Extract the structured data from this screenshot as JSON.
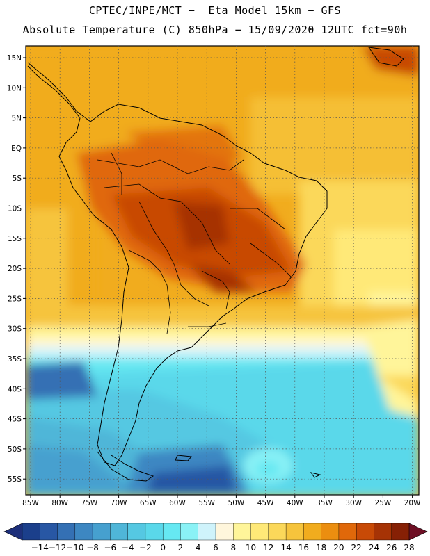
{
  "header": {
    "line1": "CPTEC/INPE/MCT −  Eta Model 15km − GFS",
    "line2": "Absolute Temperature (C) 850hPa − 15/09/2020 12UTC fct=90h"
  },
  "map": {
    "lat_labels": [
      "15N",
      "10N",
      "5N",
      "EQ",
      "5S",
      "10S",
      "15S",
      "20S",
      "25S",
      "30S",
      "35S",
      "40S",
      "45S",
      "50S",
      "55S"
    ],
    "lon_labels": [
      "85W",
      "80W",
      "75W",
      "70W",
      "65W",
      "60W",
      "55W",
      "50W",
      "45W",
      "40W",
      "35W",
      "30W",
      "25W",
      "20W"
    ],
    "region": "South America",
    "variable": "Absolute Temperature (C) 850hPa"
  },
  "legend": {
    "labels": [
      "-14",
      "-12",
      "-10",
      "-8",
      "-6",
      "-4",
      "-2",
      "0",
      "2",
      "4",
      "6",
      "8",
      "10",
      "12",
      "14",
      "16",
      "18",
      "20",
      "22",
      "24",
      "26",
      "28"
    ],
    "colors": [
      "#1b3f8b",
      "#2857a4",
      "#3470b4",
      "#3d87c2",
      "#46a0cf",
      "#4fb6d8",
      "#55c8e2",
      "#5ad8ea",
      "#66e8f2",
      "#8af2f6",
      "#cff3fb",
      "#fff6dc",
      "#fff59a",
      "#ffe978",
      "#fbd85a",
      "#f6c43c",
      "#f1ac1e",
      "#eb8e10",
      "#e0680a",
      "#c84a06",
      "#a63305",
      "#862005"
    ]
  }
}
